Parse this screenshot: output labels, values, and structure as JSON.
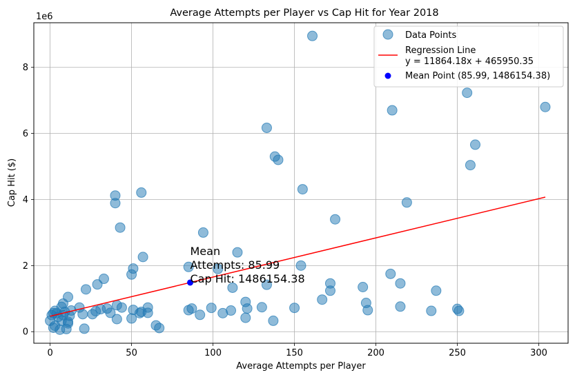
{
  "chart_data": {
    "type": "scatter",
    "title": "Average Attempts per Player vs Cap Hit for Year 2018",
    "xlabel": "Average Attempts per Player",
    "ylabel": "Cap Hit ($)",
    "y_offset_label": "1e6",
    "xlim": [
      -10,
      318
    ],
    "ylim": [
      -350000,
      9350000
    ],
    "xticks": [
      0,
      50,
      100,
      150,
      200,
      250,
      300
    ],
    "yticks": [
      0,
      2000000,
      4000000,
      6000000,
      8000000
    ],
    "ytick_labels": [
      "0",
      "2",
      "4",
      "6",
      "8"
    ],
    "grid": true,
    "legend_position": "top-right",
    "colors": {
      "points": "#1f77b4",
      "regression": "#ff0000",
      "mean": "#0000ff"
    },
    "legend": {
      "points": "Data Points",
      "regression_line1": "Regression Line",
      "regression_line2": "y = 11864.18x + 465950.35",
      "mean": "Mean Point (85.99, 1486154.38)"
    },
    "regression": {
      "slope": 11864.18,
      "intercept": 465950.35,
      "x_range": [
        0,
        304
      ]
    },
    "mean_point": {
      "x": 85.99,
      "y": 1486154.38
    },
    "annotation": {
      "lines": [
        "Mean",
        "Attempts: 85.99",
        "Cap Hit: 1486154.38"
      ]
    },
    "points": [
      [
        0,
        330000
      ],
      [
        1,
        500000
      ],
      [
        2,
        560000
      ],
      [
        2,
        120000
      ],
      [
        3,
        630000
      ],
      [
        3,
        180000
      ],
      [
        4,
        560000
      ],
      [
        5,
        450000
      ],
      [
        6,
        60000
      ],
      [
        7,
        750000
      ],
      [
        7,
        330000
      ],
      [
        8,
        850000
      ],
      [
        8,
        500000
      ],
      [
        9,
        600000
      ],
      [
        10,
        80000
      ],
      [
        11,
        300000
      ],
      [
        11,
        250000
      ],
      [
        12,
        480000
      ],
      [
        13,
        640000
      ],
      [
        11,
        1050000
      ],
      [
        18,
        730000
      ],
      [
        20,
        530000
      ],
      [
        21,
        90000
      ],
      [
        22,
        1280000
      ],
      [
        26,
        530000
      ],
      [
        28,
        620000
      ],
      [
        29,
        1430000
      ],
      [
        31,
        680000
      ],
      [
        33,
        1600000
      ],
      [
        35,
        700000
      ],
      [
        37,
        570000
      ],
      [
        40,
        4120000
      ],
      [
        40,
        3890000
      ],
      [
        41,
        380000
      ],
      [
        41,
        800000
      ],
      [
        43,
        3150000
      ],
      [
        44,
        730000
      ],
      [
        50,
        1730000
      ],
      [
        50,
        400000
      ],
      [
        51,
        1910000
      ],
      [
        51,
        660000
      ],
      [
        55,
        560000
      ],
      [
        56,
        4210000
      ],
      [
        56,
        600000
      ],
      [
        57,
        2260000
      ],
      [
        60,
        730000
      ],
      [
        60,
        570000
      ],
      [
        65,
        190000
      ],
      [
        67,
        110000
      ],
      [
        85,
        1960000
      ],
      [
        85,
        650000
      ],
      [
        87,
        700000
      ],
      [
        92,
        510000
      ],
      [
        94,
        3000000
      ],
      [
        99,
        720000
      ],
      [
        103,
        1900000
      ],
      [
        106,
        560000
      ],
      [
        111,
        640000
      ],
      [
        112,
        1330000
      ],
      [
        115,
        2400000
      ],
      [
        120,
        900000
      ],
      [
        120,
        420000
      ],
      [
        121,
        700000
      ],
      [
        130,
        740000
      ],
      [
        133,
        6170000
      ],
      [
        133,
        1420000
      ],
      [
        137,
        330000
      ],
      [
        138,
        5300000
      ],
      [
        140,
        5200000
      ],
      [
        150,
        720000
      ],
      [
        154,
        2000000
      ],
      [
        155,
        4310000
      ],
      [
        161,
        8950000
      ],
      [
        167,
        970000
      ],
      [
        172,
        1460000
      ],
      [
        172,
        1240000
      ],
      [
        175,
        3400000
      ],
      [
        192,
        1350000
      ],
      [
        194,
        870000
      ],
      [
        195,
        650000
      ],
      [
        209,
        1750000
      ],
      [
        210,
        6700000
      ],
      [
        215,
        1460000
      ],
      [
        215,
        760000
      ],
      [
        219,
        3910000
      ],
      [
        234,
        630000
      ],
      [
        237,
        1240000
      ],
      [
        250,
        690000
      ],
      [
        251,
        630000
      ],
      [
        256,
        7230000
      ],
      [
        258,
        5040000
      ],
      [
        261,
        5660000
      ],
      [
        304,
        6800000
      ]
    ]
  }
}
